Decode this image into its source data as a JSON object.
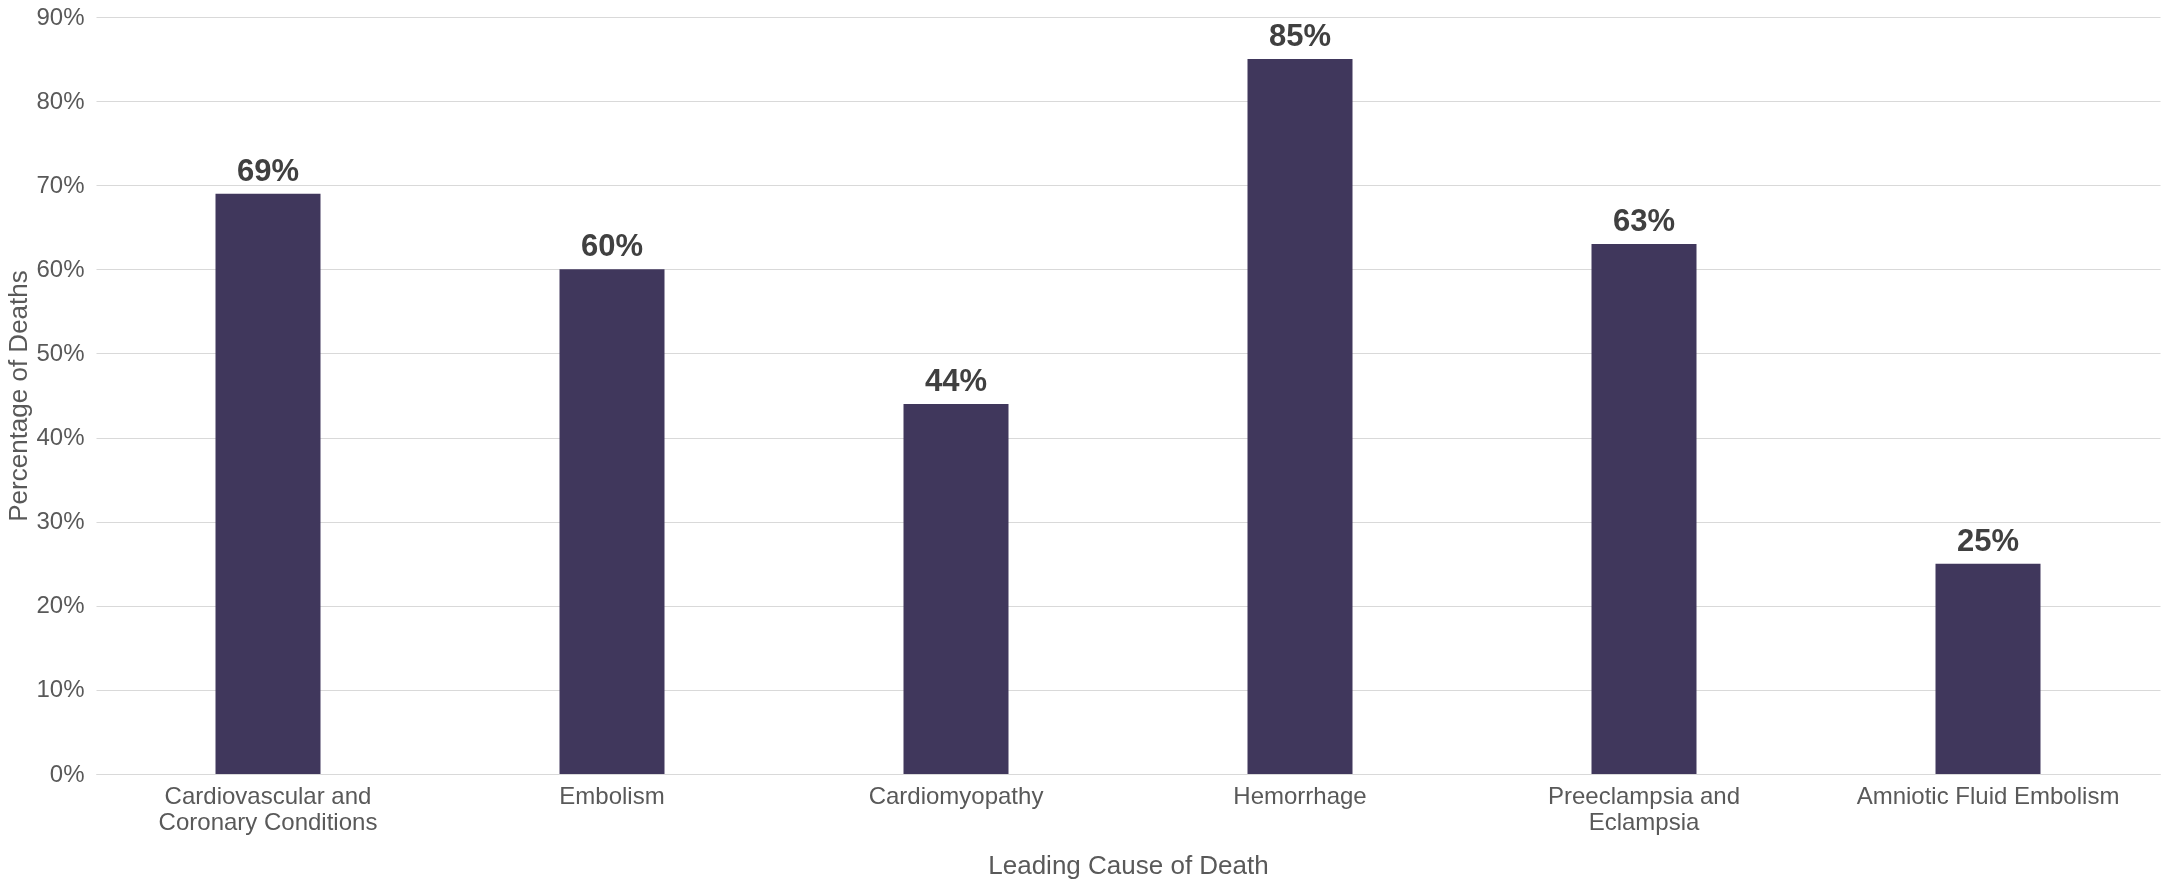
{
  "chart_data": {
    "type": "bar",
    "xlabel": "Leading Cause of Death",
    "ylabel": "Percentage of Deaths",
    "categories": [
      "Cardiovascular and Coronary Conditions",
      "Embolism",
      "Cardiomyopathy",
      "Hemorrhage",
      "Preeclampsia and Eclampsia",
      "Amniotic Fluid Embolism"
    ],
    "values": [
      69,
      60,
      44,
      85,
      63,
      25
    ],
    "value_labels": [
      "69%",
      "60%",
      "44%",
      "85%",
      "63%",
      "25%"
    ],
    "color": "#40375c",
    "ylim": [
      0,
      90
    ],
    "yticks": [
      {
        "value": 0,
        "label": "0%"
      },
      {
        "value": 10,
        "label": "10%"
      },
      {
        "value": 20,
        "label": "20%"
      },
      {
        "value": 30,
        "label": "30%"
      },
      {
        "value": 40,
        "label": "40%"
      },
      {
        "value": 50,
        "label": "50%"
      },
      {
        "value": 60,
        "label": "60%"
      },
      {
        "value": 70,
        "label": "70%"
      },
      {
        "value": 80,
        "label": "80%"
      },
      {
        "value": 90,
        "label": "90%"
      }
    ],
    "grid": "y"
  }
}
